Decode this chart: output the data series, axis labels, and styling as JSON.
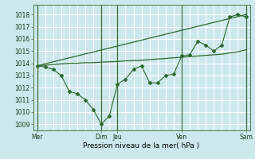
{
  "background_color": "#cce8ec",
  "grid_color": "#ffffff",
  "line_color": "#2d6a2d",
  "ylabel": "Pression niveau de la mer( hPa )",
  "ylim": [
    1008.5,
    1018.8
  ],
  "yticks": [
    1009,
    1010,
    1011,
    1012,
    1013,
    1014,
    1015,
    1016,
    1017,
    1018
  ],
  "xtick_labels": [
    "Mer",
    "Dim",
    "Jeu",
    "Ven",
    "Sam"
  ],
  "xtick_positions": [
    0,
    8,
    10,
    18,
    26
  ],
  "series1_x": [
    0,
    1,
    2,
    3,
    4,
    5,
    6,
    7,
    8,
    9,
    10,
    11,
    12,
    13,
    14,
    15,
    16,
    17,
    18,
    19,
    20,
    21,
    22,
    23,
    24,
    25,
    26
  ],
  "series1_y": [
    1013.8,
    1013.7,
    1013.5,
    1013.0,
    1011.7,
    1011.5,
    1011.0,
    1010.2,
    1009.0,
    1009.7,
    1012.3,
    1012.7,
    1013.5,
    1013.8,
    1012.4,
    1012.4,
    1013.0,
    1013.1,
    1014.6,
    1014.7,
    1015.8,
    1015.5,
    1015.0,
    1015.5,
    1017.8,
    1018.0,
    1017.8
  ],
  "series2_x": [
    0,
    26
  ],
  "series2_y": [
    1013.8,
    1018.0
  ],
  "series3_x": [
    0,
    1,
    2,
    3,
    4,
    5,
    6,
    7,
    8,
    9,
    10,
    11,
    12,
    13,
    14,
    15,
    16,
    17,
    18,
    19,
    20,
    21,
    22,
    23,
    24,
    25,
    26
  ],
  "series3_y": [
    1013.8,
    1013.85,
    1013.9,
    1013.95,
    1014.0,
    1014.0,
    1014.05,
    1014.05,
    1014.1,
    1014.12,
    1014.15,
    1014.2,
    1014.22,
    1014.25,
    1014.3,
    1014.35,
    1014.4,
    1014.45,
    1014.5,
    1014.55,
    1014.6,
    1014.65,
    1014.7,
    1014.75,
    1014.85,
    1014.95,
    1015.1
  ],
  "vline_positions": [
    0,
    8,
    10,
    18,
    26
  ],
  "tick_fontsize": 5.5,
  "label_fontsize": 6.5
}
